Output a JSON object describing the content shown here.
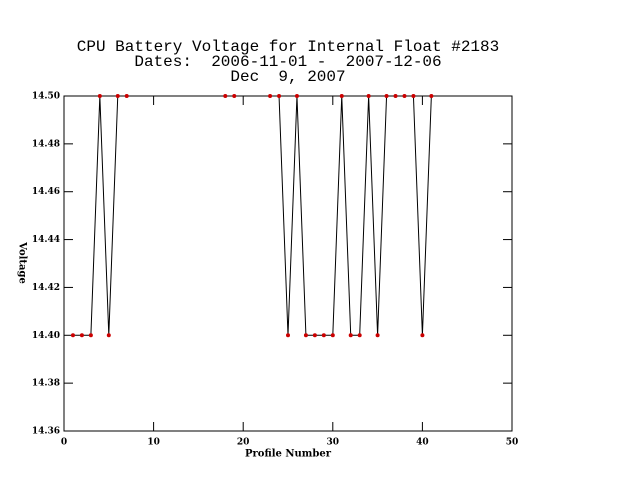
{
  "chart_data": {
    "type": "line",
    "title": "CPU Battery Voltage for Internal Float #2183",
    "subtitle": "Dates:  2006-11-01 -  2007-12-06",
    "date": "Dec  9, 2007",
    "x_label": "Profile Number",
    "y_label": "Voltage",
    "xlim": [
      0,
      50
    ],
    "xticks": [
      0,
      10,
      20,
      30,
      40,
      50
    ],
    "ylim": [
      14.36,
      14.5
    ],
    "yticks": [
      14.36,
      14.38,
      {
        "value": 14.4,
        "label": "14.40"
      },
      14.42,
      14.44,
      14.46,
      14.48,
      {
        "value": 14.5,
        "label": "14.50"
      }
    ],
    "series": [
      {
        "name": "Voltage",
        "color": "#000000",
        "marker_color": "#cc0000",
        "x": [
          1,
          2,
          3,
          4,
          5,
          6,
          7,
          18,
          19,
          23,
          24,
          25,
          26,
          27,
          28,
          29,
          30,
          31,
          32,
          33,
          34,
          35,
          36,
          37,
          38,
          39,
          40,
          41
        ],
        "values": [
          14.4,
          14.4,
          14.4,
          14.5,
          14.4,
          14.5,
          14.5,
          14.5,
          14.5,
          14.5,
          14.5,
          14.4,
          14.5,
          14.4,
          14.4,
          14.4,
          14.4,
          14.5,
          14.4,
          14.4,
          14.5,
          14.4,
          14.5,
          14.5,
          14.5,
          14.5,
          14.4,
          14.5
        ]
      }
    ]
  }
}
